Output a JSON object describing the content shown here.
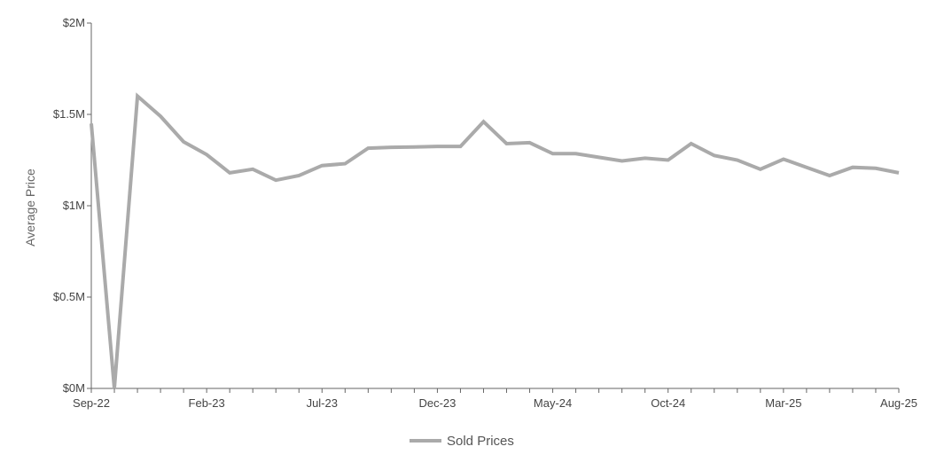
{
  "chart_data": {
    "type": "line",
    "title": "",
    "xlabel": "",
    "ylabel": "Average Price",
    "ylim": [
      0,
      2000000
    ],
    "y_ticks": [
      {
        "value": 0,
        "label": "$0M"
      },
      {
        "value": 500000,
        "label": "$0.5M"
      },
      {
        "value": 1000000,
        "label": "$1M"
      },
      {
        "value": 1500000,
        "label": "$1.5M"
      },
      {
        "value": 2000000,
        "label": "$2M"
      }
    ],
    "x": [
      "2022-09",
      "2022-10",
      "2022-11",
      "2022-12",
      "2023-01",
      "2023-02",
      "2023-03",
      "2023-04",
      "2023-05",
      "2023-06",
      "2023-07",
      "2023-08",
      "2023-09",
      "2023-10",
      "2023-11",
      "2023-12",
      "2024-01",
      "2024-02",
      "2024-03",
      "2024-04",
      "2024-05",
      "2024-06",
      "2024-07",
      "2024-08",
      "2024-09",
      "2024-10",
      "2024-11",
      "2024-12",
      "2025-01",
      "2025-02",
      "2025-03",
      "2025-04",
      "2025-05",
      "2025-06",
      "2025-07",
      "2025-08"
    ],
    "x_ticks": [
      {
        "x": "2022-09",
        "label": "Sep-22"
      },
      {
        "x": "2023-02",
        "label": "Feb-23"
      },
      {
        "x": "2023-07",
        "label": "Jul-23"
      },
      {
        "x": "2023-12",
        "label": "Dec-23"
      },
      {
        "x": "2024-05",
        "label": "May-24"
      },
      {
        "x": "2024-10",
        "label": "Oct-24"
      },
      {
        "x": "2025-03",
        "label": "Mar-25"
      },
      {
        "x": "2025-08",
        "label": "Aug-25"
      }
    ],
    "series": [
      {
        "name": "Sold Prices",
        "color": "#aaaaaa",
        "values": [
          1450000,
          0,
          1600000,
          1490000,
          1350000,
          1280000,
          1180000,
          1200000,
          1140000,
          1165000,
          1220000,
          1230000,
          1315000,
          1320000,
          1322000,
          1325000,
          1325000,
          1460000,
          1340000,
          1345000,
          1285000,
          1285000,
          1265000,
          1245000,
          1260000,
          1250000,
          1340000,
          1275000,
          1250000,
          1200000,
          1255000,
          1210000,
          1165000,
          1210000,
          1205000,
          1180000
        ]
      }
    ],
    "legend_position": "bottom-center",
    "grid": false,
    "axis_color": "#666666"
  }
}
